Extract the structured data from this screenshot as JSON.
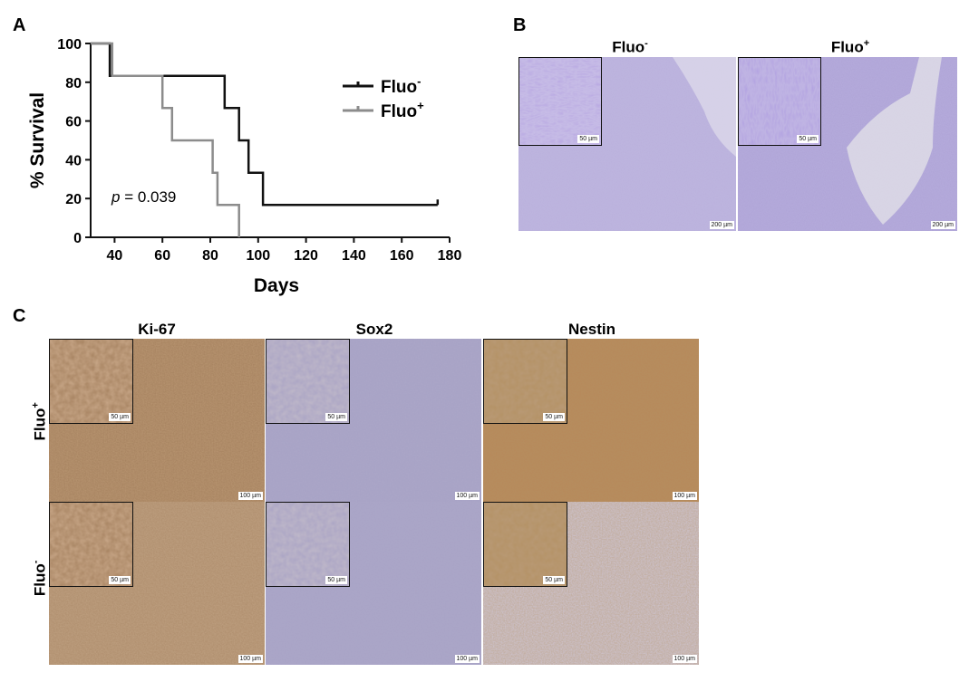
{
  "panels": {
    "a": "A",
    "b": "B",
    "c": "C"
  },
  "chart_data": {
    "type": "line",
    "step": true,
    "xlabel": "Days",
    "ylabel": "% Survival",
    "xlim": [
      30,
      180
    ],
    "ylim": [
      0,
      100
    ],
    "xticks": [
      40,
      60,
      80,
      100,
      120,
      140,
      160,
      180
    ],
    "yticks": [
      0,
      20,
      40,
      60,
      80,
      100
    ],
    "legend_position": "top-right",
    "annotation": {
      "p_symbol": "p",
      "p_text": " = 0.039"
    },
    "series": [
      {
        "name": "Fluo⁻",
        "legend_base": "Fluo",
        "legend_sup": "-",
        "color": "#111111",
        "censored_at": [
          175
        ],
        "points": [
          [
            30,
            100
          ],
          [
            38,
            100
          ],
          [
            38,
            83.3
          ],
          [
            86,
            83.3
          ],
          [
            86,
            66.7
          ],
          [
            92,
            66.7
          ],
          [
            92,
            50
          ],
          [
            96,
            50
          ],
          [
            96,
            33.3
          ],
          [
            102,
            33.3
          ],
          [
            102,
            16.7
          ],
          [
            175,
            16.7
          ]
        ]
      },
      {
        "name": "Fluo⁺",
        "legend_base": "Fluo",
        "legend_sup": "+",
        "color": "#8c8c8c",
        "censored_at": [],
        "points": [
          [
            30,
            100
          ],
          [
            39,
            100
          ],
          [
            39,
            83.3
          ],
          [
            60,
            83.3
          ],
          [
            60,
            66.7
          ],
          [
            64,
            66.7
          ],
          [
            64,
            50
          ],
          [
            81,
            50
          ],
          [
            81,
            33.3
          ],
          [
            83,
            33.3
          ],
          [
            83,
            16.7
          ],
          [
            92,
            16.7
          ],
          [
            92,
            0
          ]
        ]
      }
    ]
  },
  "panel_b": {
    "titles": [
      {
        "base": "Fluo",
        "sup": "-"
      },
      {
        "base": "Fluo",
        "sup": "+"
      }
    ],
    "scale_inset": "50 µm",
    "scale_main": "200 µm"
  },
  "panel_c": {
    "columns": [
      "Ki-67",
      "Sox2",
      "Nestin"
    ],
    "rows": [
      {
        "base": "Fluo",
        "sup": "+"
      },
      {
        "base": "Fluo",
        "sup": "-"
      }
    ],
    "scale_inset": "50 µm",
    "scale_main": "100 µm"
  }
}
